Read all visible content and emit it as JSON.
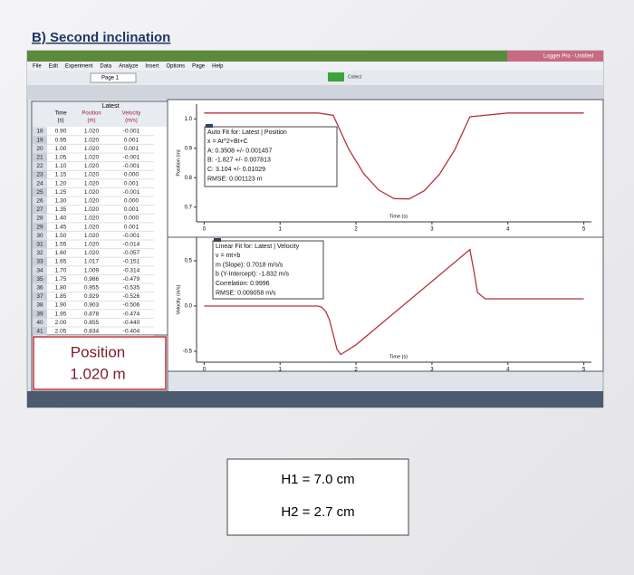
{
  "heading": "B) Second inclination",
  "app": {
    "title": "Logger Pro - Untitled",
    "menu": [
      "File",
      "Edit",
      "Experiment",
      "Data",
      "Analyze",
      "Insert",
      "Options",
      "Page",
      "Help"
    ],
    "page": "Page 1",
    "collect": "Collect"
  },
  "table": {
    "group": "Latest",
    "headers": [
      [
        "Time",
        "(s)"
      ],
      [
        "Position",
        "(m)"
      ],
      [
        "Velocity",
        "(m/s)"
      ]
    ],
    "rows": [
      [
        "18",
        "0.90",
        "1.020",
        "-0.001"
      ],
      [
        "19",
        "0.95",
        "1.020",
        "0.001"
      ],
      [
        "20",
        "1.00",
        "1.020",
        "0.001"
      ],
      [
        "21",
        "1.05",
        "1.020",
        "-0.001"
      ],
      [
        "22",
        "1.10",
        "1.020",
        "-0.001"
      ],
      [
        "23",
        "1.15",
        "1.020",
        "0.000"
      ],
      [
        "24",
        "1.20",
        "1.020",
        "0.001"
      ],
      [
        "25",
        "1.25",
        "1.020",
        "-0.001"
      ],
      [
        "26",
        "1.30",
        "1.020",
        "0.000"
      ],
      [
        "27",
        "1.35",
        "1.020",
        "0.001"
      ],
      [
        "28",
        "1.40",
        "1.020",
        "0.000"
      ],
      [
        "29",
        "1.45",
        "1.020",
        "0.001"
      ],
      [
        "30",
        "1.50",
        "1.020",
        "-0.001"
      ],
      [
        "31",
        "1.55",
        "1.020",
        "-0.014"
      ],
      [
        "32",
        "1.60",
        "1.020",
        "-0.057"
      ],
      [
        "33",
        "1.65",
        "1.017",
        "-0.151"
      ],
      [
        "34",
        "1.70",
        "1.009",
        "-0.314"
      ],
      [
        "35",
        "1.75",
        "0.986",
        "-0.479"
      ],
      [
        "36",
        "1.80",
        "0.955",
        "-0.535"
      ],
      [
        "37",
        "1.85",
        "0.929",
        "-0.526"
      ],
      [
        "38",
        "1.90",
        "0.903",
        "-0.506"
      ],
      [
        "39",
        "1.95",
        "0.878",
        "-0.474"
      ],
      [
        "40",
        "2.00",
        "0.855",
        "-0.440"
      ],
      [
        "41",
        "2.05",
        "0.834",
        "-0.404"
      ]
    ]
  },
  "readout": {
    "label": "Position",
    "value": "1.020 m"
  },
  "chart_data": [
    {
      "type": "line",
      "x_label": "Time (s)",
      "y_label": "Position (m)",
      "color": "#b8323c",
      "x": [
        0,
        0.5,
        1,
        1.5,
        1.7,
        1.9,
        2.1,
        2.3,
        2.5,
        2.7,
        2.9,
        3.1,
        3.3,
        3.5,
        4,
        4.5,
        5
      ],
      "values": [
        1.02,
        1.02,
        1.02,
        1.02,
        1.012,
        0.899,
        0.814,
        0.758,
        0.729,
        0.728,
        0.756,
        0.812,
        0.895,
        1.007,
        1.02,
        1.02,
        1.02
      ],
      "xlim": [
        -0.1,
        5.1
      ],
      "ylim": [
        0.65,
        1.05
      ],
      "xticks": [
        0,
        1,
        2,
        3,
        4,
        5
      ],
      "yticks": [
        0.7,
        0.8,
        0.9,
        {
          "value": 1,
          "label": "1.0"
        }
      ],
      "fit": [
        "Auto Fit for: Latest | Position",
        "x = At^2+Bt+C",
        "A: 0.3508 +/- 0.001457",
        "B: -1.827 +/- 0.007813",
        "C: 3.104 +/- 0.01029",
        "RMSE: 0.001123 m"
      ]
    },
    {
      "type": "line",
      "x_label": "Time (s)",
      "y_label": "Velocity (m/s)",
      "color": "#b8323c",
      "x": [
        0,
        1,
        1.5,
        1.55,
        1.6,
        1.65,
        1.7,
        1.75,
        1.8,
        2,
        2.5,
        3,
        3.5,
        3.55,
        3.6,
        3.7,
        4,
        5
      ],
      "values": [
        0,
        0,
        0,
        -0.014,
        -0.057,
        -0.151,
        -0.314,
        -0.479,
        -0.535,
        -0.428,
        -0.078,
        0.273,
        0.624,
        0.4,
        0.15,
        0.08,
        0.08,
        0.08
      ],
      "xlim": [
        -0.1,
        5.1
      ],
      "ylim": [
        -0.62,
        0.76
      ],
      "xticks": [
        0,
        1,
        2,
        3,
        4,
        5
      ],
      "yticks": [
        -0.5,
        {
          "value": 0,
          "label": "0.0"
        },
        0.5
      ],
      "fit": [
        "Linear Fit for: Latest | Velocity",
        "v = mt+b",
        "m (Slope): 0.7018 m/s/s",
        "b (Y-Intercept): -1.832 m/s",
        "Correlation: 0.9996",
        "RMSE: 0.009058 m/s"
      ]
    }
  ],
  "notes": [
    "H1 = 7.0 cm",
    "H2 = 2.7 cm"
  ]
}
